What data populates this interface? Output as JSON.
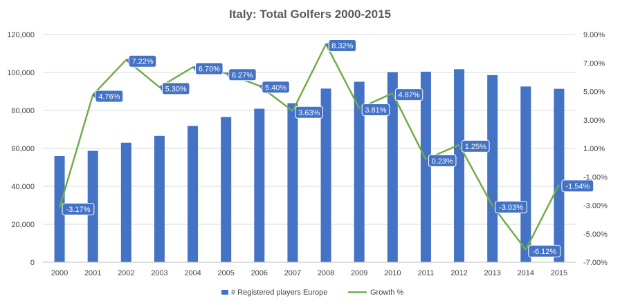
{
  "chart_data": {
    "type": "bar",
    "title": "Italy: Total Golfers 2000-2015",
    "categories": [
      "2000",
      "2001",
      "2002",
      "2003",
      "2004",
      "2005",
      "2006",
      "2007",
      "2008",
      "2009",
      "2010",
      "2011",
      "2012",
      "2013",
      "2014",
      "2015"
    ],
    "series": [
      {
        "name": "# Registered players Europe",
        "type": "bar",
        "axis": "left",
        "values": [
          56000,
          58700,
          63000,
          66600,
          71800,
          76500,
          80900,
          83800,
          91500,
          95100,
          100200,
          100400,
          101700,
          98600,
          92600,
          91400
        ]
      },
      {
        "name": "Growth %",
        "type": "line",
        "axis": "right",
        "values": [
          -3.17,
          4.76,
          7.22,
          5.3,
          6.7,
          6.27,
          5.4,
          3.63,
          8.32,
          3.81,
          4.87,
          0.23,
          1.25,
          -3.03,
          -6.12,
          -1.54
        ],
        "labels": [
          "-3.17%",
          "4.76%",
          "7.22%",
          "5.30%",
          "6.70%",
          "6.27%",
          "5.40%",
          "3.63%",
          "8.32%",
          "3.81%",
          "4.87%",
          "0.23%",
          "1.25%",
          "-3.03%",
          "-6.12%",
          "-1.54%"
        ]
      }
    ],
    "y_left": {
      "min": 0,
      "max": 120000,
      "ticks": [
        0,
        20000,
        40000,
        60000,
        80000,
        100000,
        120000
      ],
      "tick_labels": [
        "0",
        "20,000",
        "40,000",
        "60,000",
        "80,000",
        "100,000",
        "120,000"
      ]
    },
    "y_right": {
      "min": -7,
      "max": 9,
      "ticks": [
        -7,
        -5,
        -3,
        -1,
        1,
        3,
        5,
        7,
        9
      ],
      "tick_labels": [
        "-7.00%",
        "-5.00%",
        "-3.00%",
        "-1.00%",
        "1.00%",
        "3.00%",
        "5.00%",
        "7.00%",
        "9.00%"
      ]
    },
    "grid": true,
    "legend": "bottom",
    "colors": {
      "bar": "#4472C4",
      "line": "#70AD47",
      "label_bg": "#4472C4",
      "grid": "#D9D9D9"
    }
  }
}
